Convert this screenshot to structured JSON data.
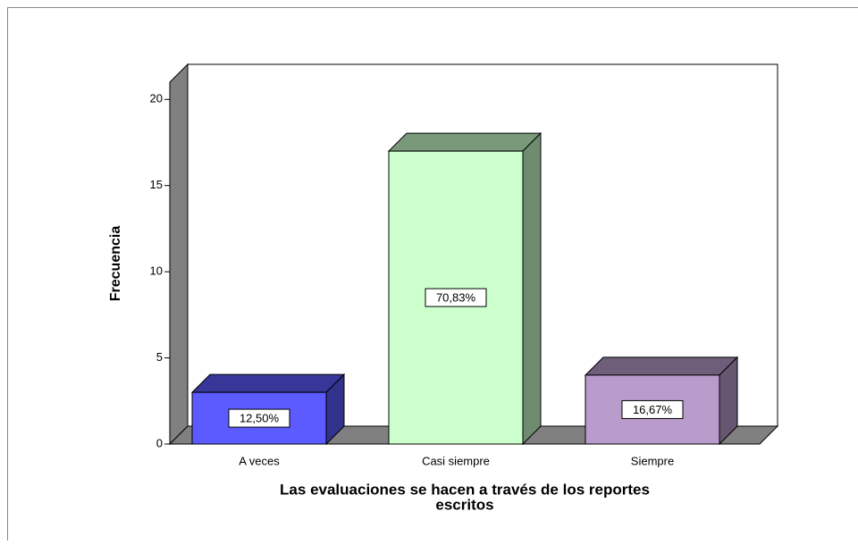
{
  "chart_data": {
    "type": "bar3d",
    "y_label": "Frecuencia",
    "x_label": [
      "Las evaluaciones se hacen a través de los reportes",
      "escritos"
    ],
    "categories": [
      "A veces",
      "Casi siempre",
      "Siempre"
    ],
    "values": [
      3,
      17,
      4
    ],
    "percentages": [
      12.5,
      70.83,
      16.67
    ],
    "percentage_labels": [
      "12,50%",
      "70,83%",
      "16,67%"
    ],
    "colors": [
      "#5b5bff",
      "#ccffcc",
      "#b99ccc"
    ],
    "ylim": [
      0,
      21
    ],
    "yticks": [
      0,
      5,
      10,
      15,
      20
    ]
  }
}
